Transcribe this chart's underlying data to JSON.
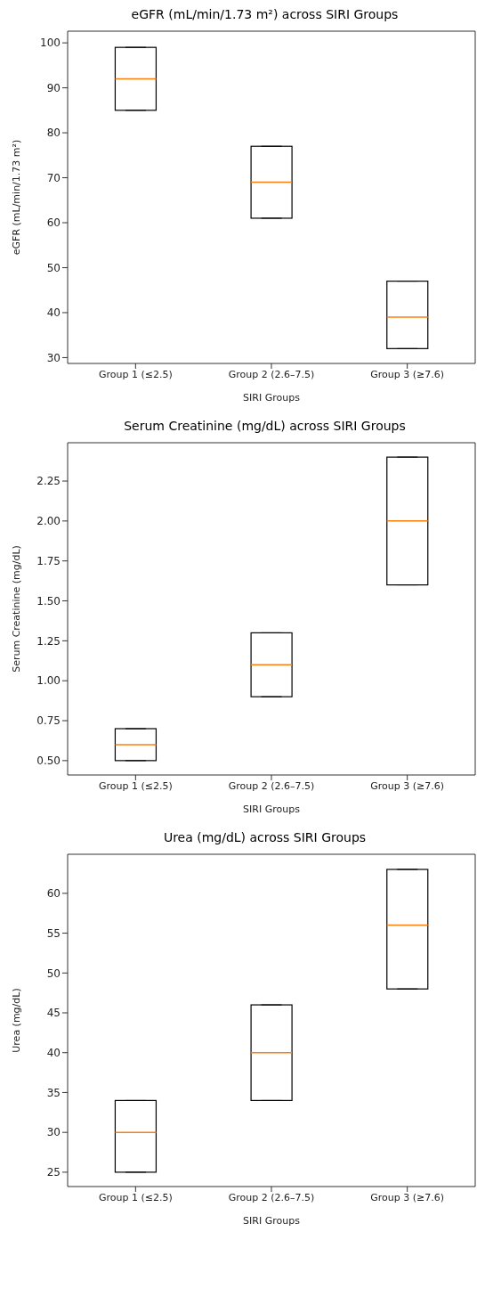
{
  "chart_data": [
    {
      "type": "box",
      "title": "eGFR (mL/min/1.73 m²) across SIRI Groups",
      "xlabel": "SIRI Groups",
      "ylabel": "eGFR (mL/min/1.73 m²)",
      "categories": [
        "Group 1 (≤2.5)",
        "Group 2 (2.6–7.5)",
        "Group 3 (≥7.6)"
      ],
      "color": "#000000",
      "ylim": [
        28.7,
        102.6
      ],
      "yticks": [
        30,
        40,
        50,
        60,
        70,
        80,
        90,
        100
      ],
      "grid": false,
      "legend": false,
      "boxes": [
        {
          "low": 85,
          "q1": 85,
          "median": 92,
          "q3": 99,
          "high": 99
        },
        {
          "low": 61,
          "q1": 61,
          "median": 69,
          "q3": 77,
          "high": 77
        },
        {
          "low": 32,
          "q1": 32,
          "median": 39,
          "q3": 47,
          "high": 47
        }
      ]
    },
    {
      "type": "box",
      "title": "Serum Creatinine (mg/dL) across SIRI Groups",
      "xlabel": "SIRI Groups",
      "ylabel": "Serum Creatinine (mg/dL)",
      "categories": [
        "Group 1 (≤2.5)",
        "Group 2 (2.6–7.5)",
        "Group 3 (≥7.6)"
      ],
      "color": "#000000",
      "ylim": [
        0.41,
        2.49
      ],
      "yticks": [
        {
          "value": 0.5,
          "label": "0.50"
        },
        0.75,
        {
          "value": 1,
          "label": "1.00"
        },
        1.25,
        {
          "value": 1.5,
          "label": "1.50"
        },
        1.75,
        {
          "value": 2,
          "label": "2.00"
        },
        2.25
      ],
      "grid": false,
      "legend": false,
      "boxes": [
        {
          "low": 0.5,
          "q1": 0.5,
          "median": 0.6,
          "q3": 0.7,
          "high": 0.7
        },
        {
          "low": 0.9,
          "q1": 0.9,
          "median": 1.1,
          "q3": 1.3,
          "high": 1.3
        },
        {
          "low": 1.6,
          "q1": 1.6,
          "median": 2.0,
          "q3": 2.4,
          "high": 2.4
        }
      ]
    },
    {
      "type": "box",
      "title": "Urea (mg/dL) across SIRI Groups",
      "xlabel": "SIRI Groups",
      "ylabel": "Urea (mg/dL)",
      "categories": [
        "Group 1 (≤2.5)",
        "Group 2 (2.6–7.5)",
        "Group 3 (≥7.6)"
      ],
      "color": "#000000",
      "ylim": [
        23.2,
        64.9
      ],
      "yticks": [
        25,
        30,
        35,
        40,
        45,
        50,
        55,
        60
      ],
      "grid": false,
      "legend": false,
      "boxes": [
        {
          "low": 25,
          "q1": 25,
          "median": 30,
          "q3": 34,
          "high": 34
        },
        {
          "low": 34,
          "q1": 34,
          "median": 40,
          "q3": 46,
          "high": 46
        },
        {
          "low": 48,
          "q1": 48,
          "median": 56,
          "q3": 63,
          "high": 63
        }
      ]
    }
  ]
}
